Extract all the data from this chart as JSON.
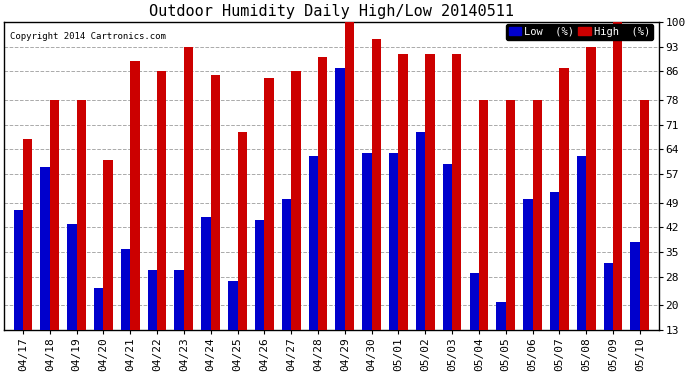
{
  "title": "Outdoor Humidity Daily High/Low 20140511",
  "copyright": "Copyright 2014 Cartronics.com",
  "categories": [
    "04/17",
    "04/18",
    "04/19",
    "04/20",
    "04/21",
    "04/22",
    "04/23",
    "04/24",
    "04/25",
    "04/26",
    "04/27",
    "04/28",
    "04/29",
    "04/30",
    "05/01",
    "05/02",
    "05/03",
    "05/04",
    "05/05",
    "05/06",
    "05/07",
    "05/08",
    "05/09",
    "05/10"
  ],
  "high": [
    67,
    78,
    78,
    61,
    89,
    86,
    93,
    85,
    69,
    84,
    86,
    90,
    100,
    95,
    91,
    91,
    91,
    78,
    78,
    78,
    87,
    93,
    100,
    78
  ],
  "low": [
    47,
    59,
    43,
    25,
    36,
    30,
    30,
    45,
    27,
    44,
    50,
    62,
    87,
    63,
    63,
    69,
    60,
    29,
    21,
    50,
    52,
    62,
    32,
    38
  ],
  "ylim": [
    13,
    100
  ],
  "yticks": [
    13,
    20,
    28,
    35,
    42,
    49,
    57,
    64,
    71,
    78,
    86,
    93,
    100
  ],
  "background_color": "#ffffff",
  "bar_color_low": "#0000cc",
  "bar_color_high": "#cc0000",
  "title_fontsize": 11,
  "tick_fontsize": 8,
  "grid_color": "#aaaaaa"
}
